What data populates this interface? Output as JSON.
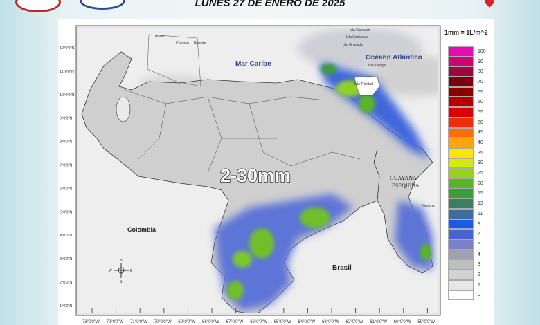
{
  "header": {
    "title": "LUNES 27 DE ENERO DE 2025"
  },
  "map": {
    "overlay_text": "2-30mm",
    "labels": {
      "mar_caribe": "Mar Caribe",
      "oceano": "Océano Atlántico",
      "colombia": "Colombia",
      "brasil": "Brasil",
      "guayana1": "GUAYANA",
      "guayana2": "ESEQUIBA",
      "guyana": "Guyana",
      "aruba": "Aruba",
      "curazao": "Curazao",
      "bonaire": "Bonaire",
      "canouan": "Isla Canouan",
      "carriacou": "Isla Carriacou",
      "granada": "Isla Granada",
      "tobago": "Isla Tobago",
      "trinidad": "Isla Trinidad"
    },
    "lon_labels": [
      "73°0'0\"W",
      "72°0'0\"W",
      "71°0'0\"W",
      "70°0'0\"W",
      "69°0'0\"W",
      "68°0'0\"W",
      "67°0'0\"W",
      "66°0'0\"W",
      "65°0'0\"W",
      "64°0'0\"W",
      "63°0'0\"W",
      "62°0'0\"W",
      "61°0'0\"W",
      "60°0'0\"W",
      "59°0'0\"W"
    ],
    "lat_labels": [
      "12°0'0\"N",
      "11°0'0\"N",
      "10°0'0\"N",
      "9°0'0\"N",
      "8°0'0\"N",
      "7°0'0\"N",
      "6°0'0\"N",
      "5°0'0\"N",
      "4°0'0\"N",
      "3°0'0\"N",
      "2°0'0\"N",
      "1°0'0\"N"
    ],
    "compass": {
      "n": "N",
      "s": "S",
      "e": "E",
      "w": "W"
    }
  },
  "legend": {
    "title": "1mm = 1L/m^2",
    "items": [
      {
        "v": "100",
        "c": "#e60ab4"
      },
      {
        "v": "90",
        "c": "#c8086e"
      },
      {
        "v": "80",
        "c": "#a0063c"
      },
      {
        "v": "70",
        "c": "#7a0010"
      },
      {
        "v": "65",
        "c": "#8c0000"
      },
      {
        "v": "60",
        "c": "#b40000"
      },
      {
        "v": "55",
        "c": "#dc0000"
      },
      {
        "v": "50",
        "c": "#f02d0a"
      },
      {
        "v": "45",
        "c": "#fa6e0a"
      },
      {
        "v": "40",
        "c": "#ffa50a"
      },
      {
        "v": "35",
        "c": "#ffe600"
      },
      {
        "v": "30",
        "c": "#d2eb0a"
      },
      {
        "v": "25",
        "c": "#96d21e"
      },
      {
        "v": "20",
        "c": "#5ab428"
      },
      {
        "v": "15",
        "c": "#3c9b3c"
      },
      {
        "v": "13",
        "c": "#3c7d64"
      },
      {
        "v": "11",
        "c": "#3c6ea0"
      },
      {
        "v": "9",
        "c": "#1e5ae6"
      },
      {
        "v": "7",
        "c": "#4664d2"
      },
      {
        "v": "5",
        "c": "#7882c8"
      },
      {
        "v": "4",
        "c": "#a0a0b4"
      },
      {
        "v": "3",
        "c": "#bebebe"
      },
      {
        "v": "2",
        "c": "#d2d2d2"
      },
      {
        "v": "1",
        "c": "#e6e6e6"
      },
      {
        "v": "0",
        "c": "#ffffff"
      }
    ]
  }
}
